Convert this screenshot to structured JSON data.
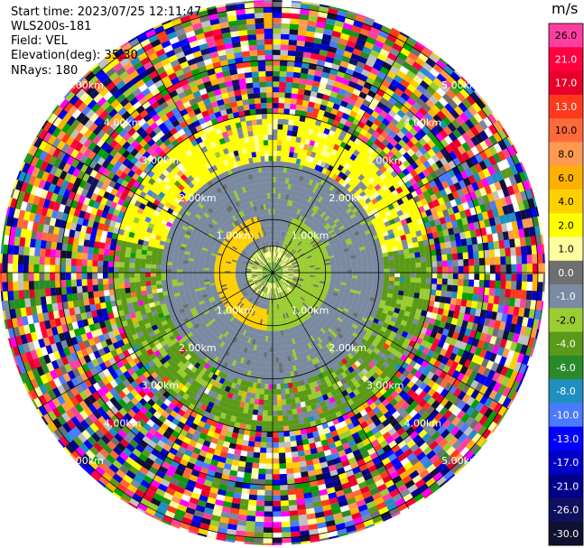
{
  "header": {
    "start_time": "Start time: 2023/07/25 12:11:47",
    "instrument": "WLS200s-181",
    "field": "Field: VEL",
    "elevation": "Elevation(deg): 35.30",
    "nrays": "NRays: 180"
  },
  "colorbar": {
    "unit": "m/s",
    "bins": [
      {
        "label": "26.0",
        "color": "#ff3fa0"
      },
      {
        "label": "21.0",
        "color": "#ff0040"
      },
      {
        "label": "17.0",
        "color": "#e8002a"
      },
      {
        "label": "13.0",
        "color": "#ff3a1a"
      },
      {
        "label": "10.0",
        "color": "#ff6a3a"
      },
      {
        "label": "8.0",
        "color": "#ff9a50"
      },
      {
        "label": "6.0",
        "color": "#ffb000"
      },
      {
        "label": "4.0",
        "color": "#ffd000"
      },
      {
        "label": "2.0",
        "color": "#ffff00"
      },
      {
        "label": "1.0",
        "color": "#ffffa0"
      },
      {
        "label": "0.0",
        "color": "#6f6f6f"
      },
      {
        "label": "-1.0",
        "color": "#7a8aa0"
      },
      {
        "label": "-2.0",
        "color": "#9acd32"
      },
      {
        "label": "-4.0",
        "color": "#5a9a18"
      },
      {
        "label": "-6.0",
        "color": "#2a8a2a"
      },
      {
        "label": "-8.0",
        "color": "#1f8fbf"
      },
      {
        "label": "-10.0",
        "color": "#4a7aff"
      },
      {
        "label": "-13.0",
        "color": "#0000ff"
      },
      {
        "label": "-17.0",
        "color": "#0000c8"
      },
      {
        "label": "-21.0",
        "color": "#00008b"
      },
      {
        "label": "-26.0",
        "color": "#101060"
      },
      {
        "label": "-30.0",
        "color": "#101030"
      }
    ]
  },
  "chart_data": {
    "type": "heatmap",
    "projection": "polar PPI",
    "field": "VEL",
    "nrays": 180,
    "range_rings": [
      {
        "range_km": 1.0,
        "label": "1.00km"
      },
      {
        "range_km": 2.0,
        "label": "2.00km"
      },
      {
        "range_km": 3.0,
        "label": "3.00km"
      },
      {
        "range_km": 4.0,
        "label": "4.00km"
      },
      {
        "range_km": 5.0,
        "label": "5.00km"
      }
    ],
    "max_range_km": 6.0,
    "spokes_deg": [
      0,
      30,
      60,
      90,
      120,
      150,
      180,
      210,
      240,
      270,
      300,
      330
    ],
    "velocity_zones": [
      {
        "from_km": 0.0,
        "to_km": 0.55,
        "description": "mixed green/yellow core"
      },
      {
        "from_km": 0.55,
        "to_km": 1.1,
        "description": "positive (yellow) SW, negative (green) NE"
      },
      {
        "from_km": 1.1,
        "to_km": 2.1,
        "description": "near zero (gray)"
      },
      {
        "from_km": 2.1,
        "to_km": 3.0,
        "description": "yellow north, green south"
      },
      {
        "from_km": 3.0,
        "to_km": 6.0,
        "description": "noise"
      }
    ]
  }
}
